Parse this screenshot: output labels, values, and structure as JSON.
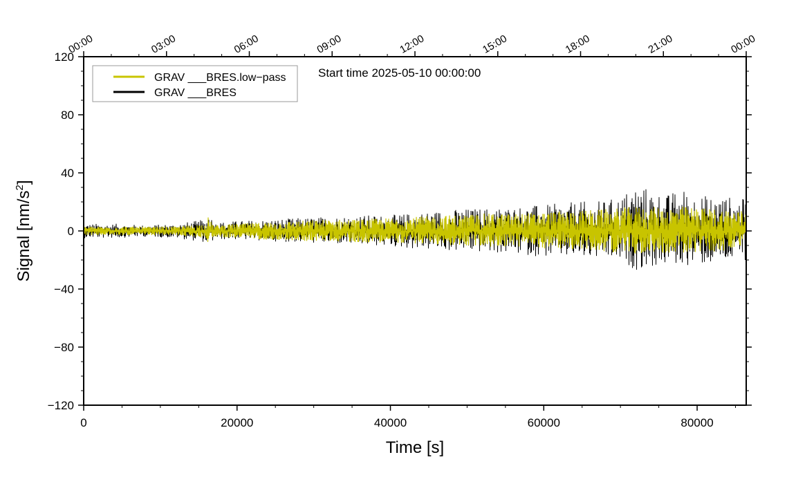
{
  "chart_data": {
    "type": "line",
    "annotation": "Start time 2025-05-10 00:00:00",
    "xlabel": "Time [s]",
    "ylabel": "Signal [nm/s",
    "ylabel_superscript": "2",
    "ylabel_suffix": "]",
    "xlim": [
      0,
      86400
    ],
    "ylim": [
      -120,
      120
    ],
    "x_ticks": [
      0,
      20000,
      40000,
      60000,
      80000
    ],
    "x_tick_labels": [
      "0",
      "20000",
      "40000",
      "60000",
      "80000"
    ],
    "y_ticks": [
      -120,
      -80,
      -40,
      0,
      40,
      80,
      120
    ],
    "y_tick_labels": [
      "−120",
      "−80",
      "−40",
      "0",
      "40",
      "80",
      "120"
    ],
    "top_axis_ticks_s": [
      0,
      10800,
      21600,
      32400,
      43200,
      54000,
      64800,
      75600,
      86400
    ],
    "top_axis_labels": [
      "00:00",
      "03:00",
      "06:00",
      "09:00",
      "12:00",
      "15:00",
      "18:00",
      "21:00",
      "00:00"
    ],
    "grid": false,
    "legend": {
      "placement": "top-left",
      "entries": [
        {
          "label": "GRAV ___BRES.low−pass",
          "color": "#c8c400"
        },
        {
          "label": "GRAV ___BRES",
          "color": "#000000"
        }
      ]
    },
    "series": [
      {
        "name": "GRAV ___BRES",
        "color": "#000000",
        "x": [
          0,
          4000,
          8000,
          12000,
          16000,
          16200,
          16500,
          17000,
          20000,
          24000,
          28000,
          32000,
          36000,
          40000,
          44000,
          48000,
          52000,
          56000,
          60000,
          64000,
          68000,
          70000,
          72000,
          76000,
          78000,
          80000,
          84000,
          86400
        ],
        "y_max": [
          5,
          5,
          4,
          5,
          8,
          17,
          12,
          6,
          7,
          8,
          9,
          10,
          11,
          11,
          13,
          15,
          16,
          17,
          18,
          20,
          21,
          24,
          33,
          25,
          30,
          25,
          24,
          22
        ],
        "y_min": [
          -5,
          -5,
          -4,
          -5,
          -8,
          -13,
          -10,
          -6,
          -6,
          -7,
          -8,
          -9,
          -10,
          -11,
          -13,
          -14,
          -15,
          -16,
          -18,
          -19,
          -20,
          -22,
          -27,
          -24,
          -24,
          -24,
          -22,
          -20
        ]
      },
      {
        "name": "GRAV ___BRES.low−pass",
        "color": "#c8c400",
        "x": [
          0,
          4000,
          8000,
          12000,
          16000,
          16200,
          16500,
          17000,
          20000,
          24000,
          28000,
          32000,
          36000,
          40000,
          44000,
          48000,
          52000,
          56000,
          60000,
          64000,
          68000,
          70000,
          72000,
          76000,
          78000,
          80000,
          84000,
          86400
        ],
        "y_max": [
          3,
          3,
          3,
          3,
          5,
          10,
          7,
          4,
          5,
          6,
          7,
          8,
          8,
          9,
          10,
          11,
          12,
          12,
          13,
          14,
          15,
          16,
          17,
          16,
          17,
          16,
          15,
          14
        ],
        "y_min": [
          -3,
          -3,
          -3,
          -3,
          -5,
          -8,
          -6,
          -4,
          -5,
          -6,
          -7,
          -7,
          -8,
          -8,
          -9,
          -10,
          -11,
          -11,
          -12,
          -13,
          -14,
          -15,
          -16,
          -15,
          -16,
          -15,
          -14,
          -13
        ]
      }
    ]
  }
}
